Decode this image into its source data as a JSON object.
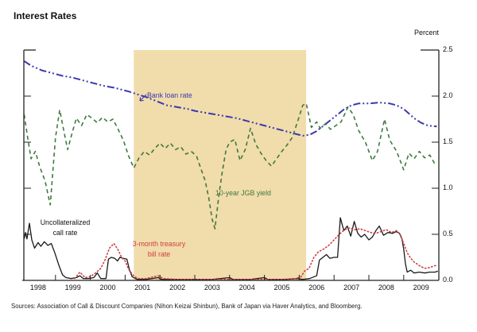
{
  "title": "Interest Rates",
  "y_axis_unit": "Percent",
  "sources": "Sources:  Association of Call & Discount Companies (Nihon Keizai Shinbun), Bank of Japan via Haver Analytics, and Bloomberg.",
  "series_labels": {
    "bank_loan": "Bank loan rate",
    "jgb": "10-year JGB yield",
    "call_line1": "Uncollateralized",
    "call_line2": "call rate",
    "tbill_line1": "3-month treasury",
    "tbill_line2": "bill rate"
  },
  "chart_data": {
    "type": "line",
    "title": "Interest Rates",
    "x_axis": {
      "tick_years": [
        "1998",
        "1999",
        "2000",
        "2001",
        "2002",
        "2003",
        "2004",
        "2005",
        "2006",
        "2007",
        "2008",
        "2009"
      ],
      "range_start": 1998,
      "range_end": 2010,
      "grid": false
    },
    "y_axis": {
      "unit": "Percent",
      "min": 0.0,
      "max": 2.5,
      "tick_interval": 0.5,
      "tick_labels": [
        "2.5",
        "2.0",
        "1.5",
        "1.0",
        "0.5",
        "0.0"
      ],
      "side": "right",
      "grid": false
    },
    "shaded_region": {
      "start_year": 2001.25,
      "end_year": 2006.2,
      "color": "#f1dcab"
    },
    "series": [
      {
        "name": "bank_loan_rate",
        "label": "Bank loan rate",
        "color": "#3a3aad",
        "line_style": "dashdot",
        "stroke_width": 2,
        "points": [
          [
            1998.1,
            2.38
          ],
          [
            1998.3,
            2.33
          ],
          [
            1998.6,
            2.28
          ],
          [
            1998.9,
            2.25
          ],
          [
            1999.2,
            2.22
          ],
          [
            1999.5,
            2.2
          ],
          [
            1999.8,
            2.17
          ],
          [
            2000.1,
            2.14
          ],
          [
            2000.4,
            2.11
          ],
          [
            2000.7,
            2.09
          ],
          [
            2000.9,
            2.07
          ],
          [
            2001.1,
            2.05
          ],
          [
            2001.35,
            2.02
          ],
          [
            2001.6,
            1.99
          ],
          [
            2001.8,
            1.96
          ],
          [
            2002.0,
            1.93
          ],
          [
            2002.2,
            1.9
          ],
          [
            2002.5,
            1.88
          ],
          [
            2002.8,
            1.86
          ],
          [
            2003.0,
            1.84
          ],
          [
            2003.3,
            1.82
          ],
          [
            2003.6,
            1.8
          ],
          [
            2003.9,
            1.78
          ],
          [
            2004.2,
            1.76
          ],
          [
            2004.5,
            1.73
          ],
          [
            2004.8,
            1.7
          ],
          [
            2005.0,
            1.68
          ],
          [
            2005.3,
            1.65
          ],
          [
            2005.6,
            1.62
          ],
          [
            2005.9,
            1.59
          ],
          [
            2006.1,
            1.57
          ],
          [
            2006.3,
            1.58
          ],
          [
            2006.5,
            1.62
          ],
          [
            2006.7,
            1.68
          ],
          [
            2006.9,
            1.74
          ],
          [
            2007.1,
            1.8
          ],
          [
            2007.3,
            1.86
          ],
          [
            2007.5,
            1.9
          ],
          [
            2007.7,
            1.92
          ],
          [
            2008.0,
            1.92
          ],
          [
            2008.3,
            1.93
          ],
          [
            2008.6,
            1.92
          ],
          [
            2008.8,
            1.9
          ],
          [
            2009.0,
            1.86
          ],
          [
            2009.15,
            1.81
          ],
          [
            2009.3,
            1.76
          ],
          [
            2009.5,
            1.71
          ],
          [
            2009.7,
            1.68
          ],
          [
            2009.95,
            1.67
          ]
        ]
      },
      {
        "name": "10_year_jgb_yield",
        "label": "10-year JGB yield",
        "color": "#3f7a3f",
        "line_style": "dashed",
        "stroke_width": 1.6,
        "points": [
          [
            1998.1,
            1.8
          ],
          [
            1998.2,
            1.55
          ],
          [
            1998.3,
            1.32
          ],
          [
            1998.42,
            1.4
          ],
          [
            1998.55,
            1.23
          ],
          [
            1998.7,
            1.08
          ],
          [
            1998.85,
            0.82
          ],
          [
            1999.0,
            1.55
          ],
          [
            1999.12,
            1.85
          ],
          [
            1999.25,
            1.6
          ],
          [
            1999.35,
            1.42
          ],
          [
            1999.5,
            1.63
          ],
          [
            1999.6,
            1.76
          ],
          [
            1999.75,
            1.68
          ],
          [
            1999.9,
            1.8
          ],
          [
            2000.05,
            1.76
          ],
          [
            2000.2,
            1.71
          ],
          [
            2000.35,
            1.77
          ],
          [
            2000.5,
            1.72
          ],
          [
            2000.65,
            1.75
          ],
          [
            2000.8,
            1.64
          ],
          [
            2000.95,
            1.52
          ],
          [
            2001.1,
            1.35
          ],
          [
            2001.25,
            1.22
          ],
          [
            2001.4,
            1.33
          ],
          [
            2001.55,
            1.4
          ],
          [
            2001.7,
            1.36
          ],
          [
            2001.85,
            1.43
          ],
          [
            2002.0,
            1.49
          ],
          [
            2002.15,
            1.43
          ],
          [
            2002.3,
            1.49
          ],
          [
            2002.45,
            1.42
          ],
          [
            2002.6,
            1.45
          ],
          [
            2002.75,
            1.37
          ],
          [
            2002.9,
            1.4
          ],
          [
            2003.05,
            1.35
          ],
          [
            2003.15,
            1.24
          ],
          [
            2003.3,
            1.08
          ],
          [
            2003.4,
            0.9
          ],
          [
            2003.5,
            0.66
          ],
          [
            2003.58,
            0.56
          ],
          [
            2003.7,
            0.95
          ],
          [
            2003.8,
            1.2
          ],
          [
            2003.9,
            1.42
          ],
          [
            2004.0,
            1.5
          ],
          [
            2004.15,
            1.53
          ],
          [
            2004.3,
            1.3
          ],
          [
            2004.45,
            1.42
          ],
          [
            2004.6,
            1.65
          ],
          [
            2004.75,
            1.48
          ],
          [
            2004.9,
            1.38
          ],
          [
            2005.05,
            1.3
          ],
          [
            2005.2,
            1.24
          ],
          [
            2005.35,
            1.32
          ],
          [
            2005.5,
            1.4
          ],
          [
            2005.65,
            1.47
          ],
          [
            2005.8,
            1.55
          ],
          [
            2005.95,
            1.72
          ],
          [
            2006.1,
            1.9
          ],
          [
            2006.2,
            1.92
          ],
          [
            2006.35,
            1.66
          ],
          [
            2006.5,
            1.72
          ],
          [
            2006.6,
            1.65
          ],
          [
            2006.75,
            1.7
          ],
          [
            2006.9,
            1.64
          ],
          [
            2007.05,
            1.68
          ],
          [
            2007.2,
            1.72
          ],
          [
            2007.4,
            1.88
          ],
          [
            2007.55,
            1.8
          ],
          [
            2007.7,
            1.63
          ],
          [
            2007.9,
            1.5
          ],
          [
            2008.1,
            1.3
          ],
          [
            2008.25,
            1.4
          ],
          [
            2008.45,
            1.75
          ],
          [
            2008.6,
            1.52
          ],
          [
            2008.8,
            1.4
          ],
          [
            2009.0,
            1.2
          ],
          [
            2009.15,
            1.38
          ],
          [
            2009.3,
            1.32
          ],
          [
            2009.45,
            1.4
          ],
          [
            2009.6,
            1.33
          ],
          [
            2009.75,
            1.36
          ],
          [
            2009.9,
            1.26
          ]
        ]
      },
      {
        "name": "uncollateralized_call_rate",
        "label": "Uncollateralized call rate",
        "color": "#1a1a1a",
        "line_style": "solid",
        "stroke_width": 1.3,
        "points": [
          [
            1998.1,
            0.45
          ],
          [
            1998.14,
            0.52
          ],
          [
            1998.18,
            0.45
          ],
          [
            1998.25,
            0.62
          ],
          [
            1998.32,
            0.44
          ],
          [
            1998.4,
            0.35
          ],
          [
            1998.5,
            0.41
          ],
          [
            1998.58,
            0.37
          ],
          [
            1998.68,
            0.42
          ],
          [
            1998.78,
            0.38
          ],
          [
            1998.88,
            0.4
          ],
          [
            1998.98,
            0.3
          ],
          [
            1999.1,
            0.16
          ],
          [
            1999.2,
            0.06
          ],
          [
            1999.3,
            0.03
          ],
          [
            1999.45,
            0.02
          ],
          [
            1999.6,
            0.03
          ],
          [
            1999.7,
            0.05
          ],
          [
            1999.8,
            0.02
          ],
          [
            1999.95,
            0.02
          ],
          [
            2000.1,
            0.03
          ],
          [
            2000.2,
            0.08
          ],
          [
            2000.3,
            0.02
          ],
          [
            2000.45,
            0.02
          ],
          [
            2000.52,
            0.23
          ],
          [
            2000.6,
            0.25
          ],
          [
            2000.7,
            0.24
          ],
          [
            2000.78,
            0.21
          ],
          [
            2000.85,
            0.25
          ],
          [
            2000.95,
            0.24
          ],
          [
            2001.05,
            0.23
          ],
          [
            2001.12,
            0.12
          ],
          [
            2001.2,
            0.04
          ],
          [
            2001.35,
            0.01
          ],
          [
            2001.6,
            0.01
          ],
          [
            2001.95,
            0.03
          ],
          [
            2002.05,
            0.01
          ],
          [
            2002.5,
            0.01
          ],
          [
            2003.0,
            0.01
          ],
          [
            2003.5,
            0.01
          ],
          [
            2004.0,
            0.03
          ],
          [
            2004.1,
            0.01
          ],
          [
            2004.6,
            0.01
          ],
          [
            2005.0,
            0.03
          ],
          [
            2005.1,
            0.01
          ],
          [
            2005.6,
            0.01
          ],
          [
            2005.95,
            0.02
          ],
          [
            2006.1,
            0.01
          ],
          [
            2006.3,
            0.02
          ],
          [
            2006.5,
            0.05
          ],
          [
            2006.58,
            0.22
          ],
          [
            2006.68,
            0.25
          ],
          [
            2006.78,
            0.28
          ],
          [
            2006.88,
            0.24
          ],
          [
            2007.0,
            0.25
          ],
          [
            2007.1,
            0.25
          ],
          [
            2007.18,
            0.68
          ],
          [
            2007.28,
            0.54
          ],
          [
            2007.38,
            0.59
          ],
          [
            2007.48,
            0.48
          ],
          [
            2007.58,
            0.64
          ],
          [
            2007.68,
            0.51
          ],
          [
            2007.78,
            0.47
          ],
          [
            2007.88,
            0.5
          ],
          [
            2008.0,
            0.44
          ],
          [
            2008.1,
            0.47
          ],
          [
            2008.2,
            0.54
          ],
          [
            2008.3,
            0.59
          ],
          [
            2008.42,
            0.49
          ],
          [
            2008.55,
            0.52
          ],
          [
            2008.68,
            0.51
          ],
          [
            2008.78,
            0.53
          ],
          [
            2008.88,
            0.51
          ],
          [
            2008.95,
            0.45
          ],
          [
            2009.0,
            0.34
          ],
          [
            2009.05,
            0.18
          ],
          [
            2009.1,
            0.09
          ],
          [
            2009.2,
            0.11
          ],
          [
            2009.3,
            0.08
          ],
          [
            2009.45,
            0.09
          ],
          [
            2009.6,
            0.08
          ],
          [
            2009.75,
            0.09
          ],
          [
            2009.9,
            0.09
          ],
          [
            2009.98,
            0.1
          ]
        ]
      },
      {
        "name": "3_month_treasury_bill_rate",
        "label": "3-month treasury bill rate",
        "color": "#cc3f46",
        "line_style": "dotted",
        "stroke_width": 1.6,
        "points": [
          [
            1999.55,
            0.02
          ],
          [
            1999.7,
            0.09
          ],
          [
            1999.85,
            0.03
          ],
          [
            2000.0,
            0.04
          ],
          [
            2000.15,
            0.08
          ],
          [
            2000.3,
            0.13
          ],
          [
            2000.42,
            0.22
          ],
          [
            2000.55,
            0.35
          ],
          [
            2000.68,
            0.4
          ],
          [
            2000.8,
            0.33
          ],
          [
            2000.9,
            0.25
          ],
          [
            2001.0,
            0.21
          ],
          [
            2001.1,
            0.12
          ],
          [
            2001.22,
            0.06
          ],
          [
            2001.35,
            0.02
          ],
          [
            2001.6,
            0.02
          ],
          [
            2001.95,
            0.05
          ],
          [
            2002.1,
            0.02
          ],
          [
            2002.5,
            0.01
          ],
          [
            2003.0,
            0.01
          ],
          [
            2003.5,
            0.01
          ],
          [
            2004.0,
            0.01
          ],
          [
            2004.5,
            0.01
          ],
          [
            2005.0,
            0.01
          ],
          [
            2005.5,
            0.01
          ],
          [
            2005.9,
            0.02
          ],
          [
            2006.05,
            0.04
          ],
          [
            2006.15,
            0.1
          ],
          [
            2006.28,
            0.13
          ],
          [
            2006.42,
            0.25
          ],
          [
            2006.55,
            0.31
          ],
          [
            2006.7,
            0.34
          ],
          [
            2006.85,
            0.38
          ],
          [
            2007.0,
            0.44
          ],
          [
            2007.15,
            0.5
          ],
          [
            2007.3,
            0.55
          ],
          [
            2007.45,
            0.57
          ],
          [
            2007.6,
            0.55
          ],
          [
            2007.75,
            0.56
          ],
          [
            2007.9,
            0.54
          ],
          [
            2008.05,
            0.52
          ],
          [
            2008.2,
            0.51
          ],
          [
            2008.35,
            0.53
          ],
          [
            2008.5,
            0.55
          ],
          [
            2008.65,
            0.52
          ],
          [
            2008.8,
            0.54
          ],
          [
            2008.9,
            0.5
          ],
          [
            2009.0,
            0.4
          ],
          [
            2009.1,
            0.3
          ],
          [
            2009.2,
            0.24
          ],
          [
            2009.3,
            0.2
          ],
          [
            2009.45,
            0.16
          ],
          [
            2009.6,
            0.13
          ],
          [
            2009.75,
            0.14
          ],
          [
            2009.9,
            0.16
          ],
          [
            2009.98,
            0.16
          ]
        ]
      }
    ]
  }
}
